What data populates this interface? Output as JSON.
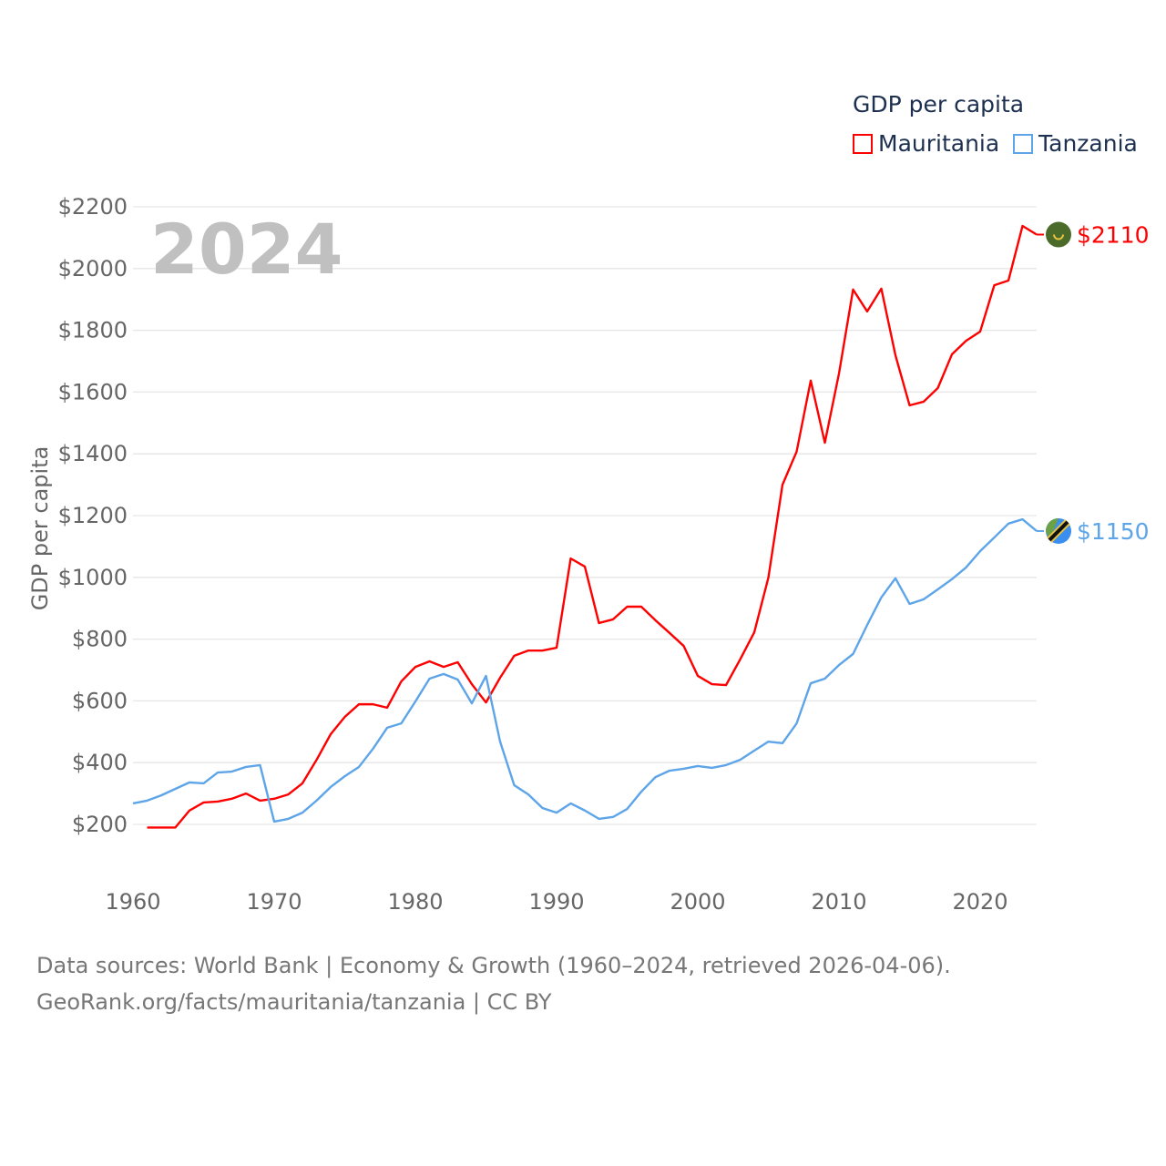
{
  "chart_data": {
    "type": "line",
    "title": "GDP per capita",
    "year_label": "2024",
    "ylabel": "GDP per capita",
    "xlabel": "",
    "xlim": [
      1960,
      2024
    ],
    "ylim": [
      200,
      2200
    ],
    "x_ticks": [
      1960,
      1970,
      1980,
      1990,
      2000,
      2010,
      2020
    ],
    "y_ticks": [
      200,
      400,
      600,
      800,
      1000,
      1200,
      1400,
      1600,
      1800,
      2000,
      2200
    ],
    "y_tick_labels": [
      "$200",
      "$400",
      "$600",
      "$800",
      "$1000",
      "$1200",
      "$1400",
      "$1600",
      "$1800",
      "$2000",
      "$2200"
    ],
    "grid": true,
    "legend_position": "top-right",
    "series": [
      {
        "name": "Mauritania",
        "color": "#ff0000",
        "end_label": "$2110",
        "flag": "mauritania-flag",
        "start_year": 1961,
        "values": [
          190,
          190,
          190,
          245,
          271,
          274,
          283,
          300,
          277,
          283,
          297,
          333,
          409,
          492,
          548,
          589,
          589,
          578,
          663,
          710,
          728,
          710,
          725,
          654,
          595,
          675,
          746,
          763,
          763,
          772,
          1061,
          1035,
          852,
          864,
          905,
          905,
          861,
          820,
          778,
          681,
          654,
          651,
          734,
          822,
          999,
          1300,
          1407,
          1637,
          1436,
          1660,
          1932,
          1861,
          1935,
          1719,
          1557,
          1569,
          1613,
          1722,
          1766,
          1796,
          1946,
          1961,
          2138,
          2110
        ]
      },
      {
        "name": "Tanzania",
        "color": "#5da5e8",
        "end_label": "$1150",
        "flag": "tanzania-flag",
        "start_year": 1960,
        "values": [
          268,
          277,
          294,
          315,
          336,
          333,
          368,
          371,
          386,
          392,
          209,
          218,
          238,
          277,
          321,
          356,
          386,
          445,
          513,
          527,
          598,
          672,
          687,
          669,
          592,
          681,
          468,
          327,
          297,
          253,
          238,
          268,
          245,
          218,
          224,
          250,
          306,
          353,
          374,
          380,
          389,
          383,
          392,
          409,
          439,
          468,
          463,
          527,
          657,
          672,
          716,
          752,
          846,
          935,
          997,
          914,
          929,
          961,
          994,
          1032,
          1085,
          1129,
          1174,
          1188,
          1150
        ]
      }
    ]
  },
  "footer": {
    "line1": "Data sources: World Bank | Economy & Growth (1960–2024, retrieved 2026-04-06).",
    "line2": "GeoRank.org/facts/mauritania/tanzania | CC BY"
  }
}
